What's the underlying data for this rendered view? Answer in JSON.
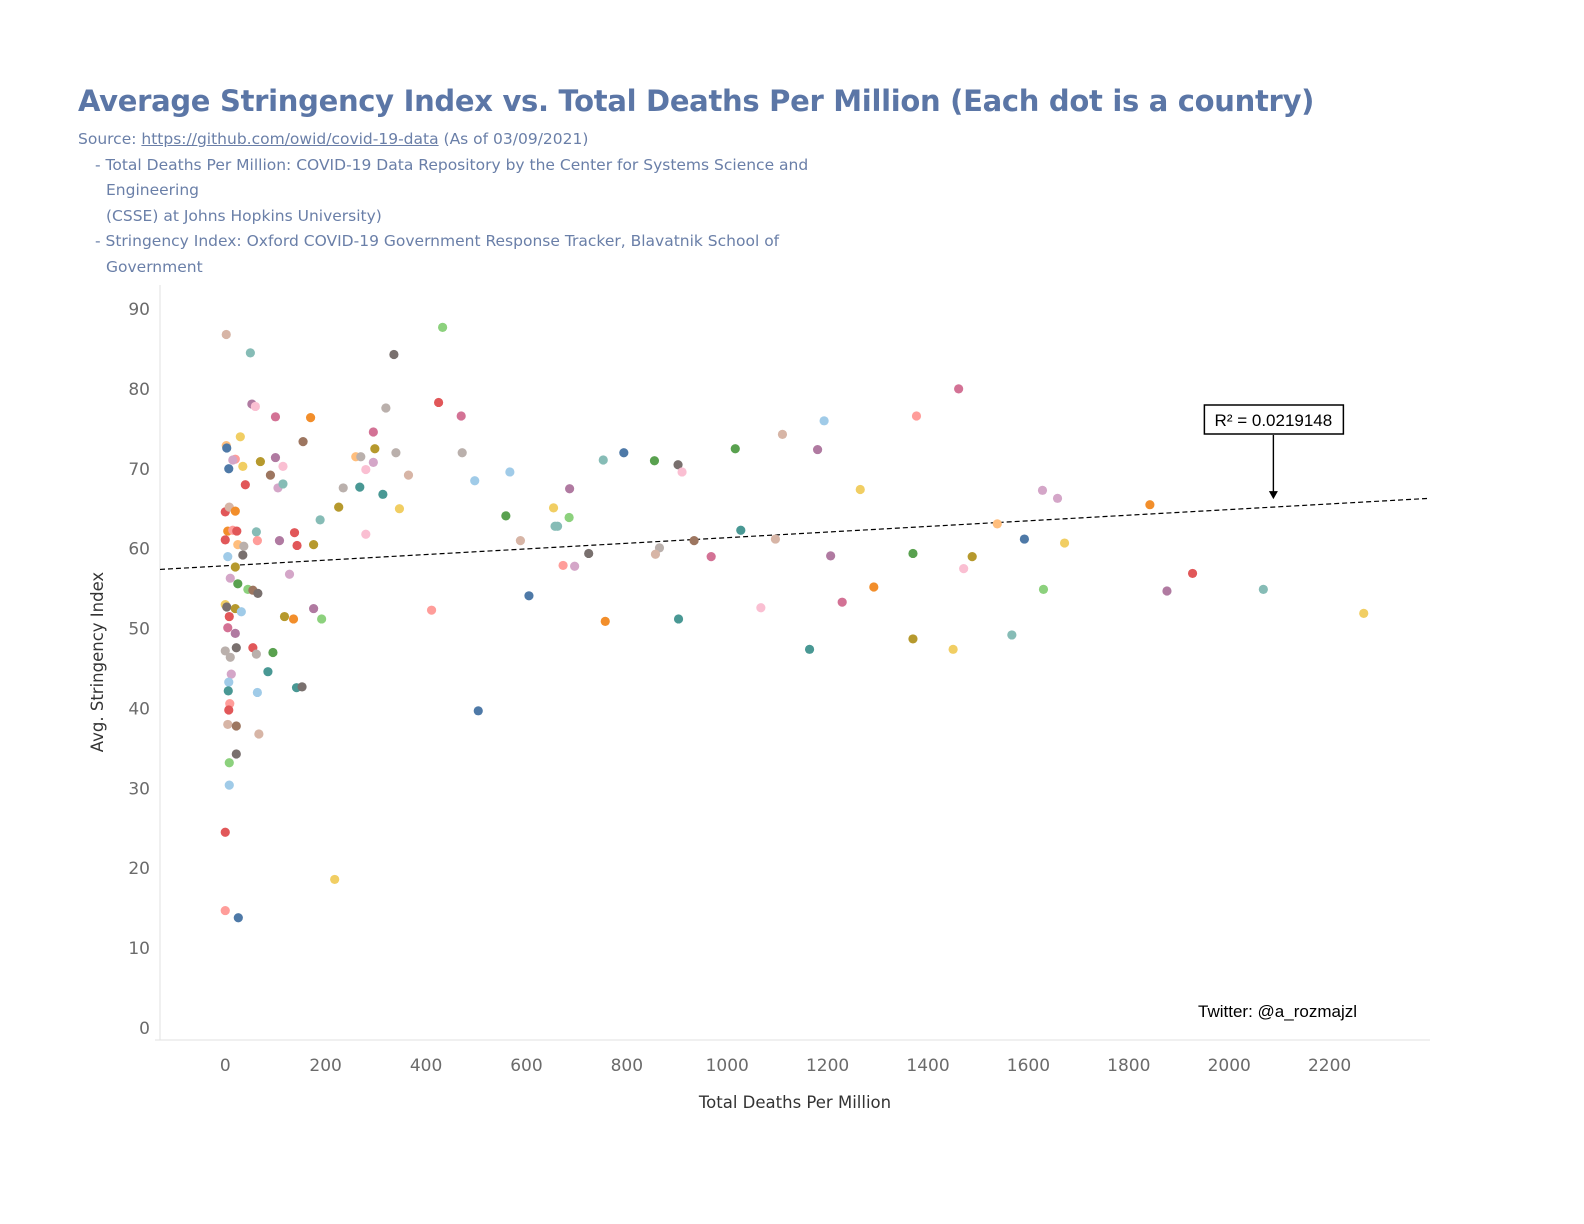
{
  "header": {
    "title": "Average Stringency Index vs. Total Deaths Per Million (Each dot is a country)",
    "source_prefix": "Source: ",
    "source_link": "https://github.com/owid/covid-19-data",
    "source_suffix": " (As of 03/09/2021)",
    "note_line1": "- Total Deaths Per Million: COVID-19 Data Repository by the Center for Systems Science and",
    "note_line2": "Engineering",
    "note_line3": "(CSSE) at Johns Hopkins University)",
    "note_line4": "- Stringency Index: Oxford COVID-19 Government Response Tracker, Blavatnik School of",
    "note_line5": "Government"
  },
  "chart_data": {
    "type": "scatter",
    "xlabel": "Total Deaths Per Million",
    "ylabel": "Avg. Stringency Index",
    "xlim": [
      -130,
      2400
    ],
    "ylim": [
      -1.5,
      93
    ],
    "xticks": [
      0,
      200,
      400,
      600,
      800,
      1000,
      1200,
      1400,
      1600,
      1800,
      2000,
      2200
    ],
    "yticks": [
      0,
      10,
      20,
      30,
      40,
      50,
      60,
      70,
      80,
      90
    ],
    "trend_line": {
      "x": [
        -130,
        2400
      ],
      "y": [
        57.4,
        66.3
      ],
      "style": "dashed"
    },
    "r_squared_label": "R² = 0.0219148",
    "r_squared_arrow_x": 2088,
    "attribution": "Twitter: @a_rozmajzl",
    "palette": [
      "#4e79a7",
      "#a0cbe8",
      "#f28e2b",
      "#ffbe7d",
      "#59a14f",
      "#8cd17d",
      "#b6992d",
      "#f1ce63",
      "#499894",
      "#86bcb6",
      "#e15759",
      "#ff9d9a",
      "#79706e",
      "#bab0ac",
      "#d37295",
      "#fabfd2",
      "#b07aa1",
      "#d4a6c8",
      "#9d7660",
      "#d7b5a6"
    ],
    "points": [
      {
        "x": 2,
        "y": 86.8,
        "color": "#d7b5a6"
      },
      {
        "x": 50,
        "y": 84.5,
        "color": "#86bcb6"
      },
      {
        "x": 433,
        "y": 87.7,
        "color": "#8cd17d"
      },
      {
        "x": 336,
        "y": 84.3,
        "color": "#79706e"
      },
      {
        "x": 53,
        "y": 78.1,
        "color": "#b07aa1"
      },
      {
        "x": 60,
        "y": 77.8,
        "color": "#fabfd2"
      },
      {
        "x": 100,
        "y": 76.5,
        "color": "#d37295"
      },
      {
        "x": 170,
        "y": 76.4,
        "color": "#f28e2b"
      },
      {
        "x": 320,
        "y": 77.6,
        "color": "#bab0ac"
      },
      {
        "x": 425,
        "y": 78.3,
        "color": "#e15759"
      },
      {
        "x": 470,
        "y": 76.6,
        "color": "#d37295"
      },
      {
        "x": 1193,
        "y": 76.0,
        "color": "#a0cbe8"
      },
      {
        "x": 1377,
        "y": 76.6,
        "color": "#ff9d9a"
      },
      {
        "x": 1461,
        "y": 80.0,
        "color": "#d37295"
      },
      {
        "x": 2,
        "y": 72.9,
        "color": "#ffbe7d"
      },
      {
        "x": 3,
        "y": 72.6,
        "color": "#4e79a7"
      },
      {
        "x": 30,
        "y": 74.0,
        "color": "#f1ce63"
      },
      {
        "x": 20,
        "y": 71.2,
        "color": "#ff9d9a"
      },
      {
        "x": 15,
        "y": 71.1,
        "color": "#d4a6c8"
      },
      {
        "x": 7,
        "y": 70.0,
        "color": "#4e79a7"
      },
      {
        "x": 35,
        "y": 70.3,
        "color": "#f1ce63"
      },
      {
        "x": 70,
        "y": 70.9,
        "color": "#b6992d"
      },
      {
        "x": 100,
        "y": 71.4,
        "color": "#b07aa1"
      },
      {
        "x": 115,
        "y": 70.3,
        "color": "#fabfd2"
      },
      {
        "x": 155,
        "y": 73.4,
        "color": "#9d7660"
      },
      {
        "x": 90,
        "y": 69.2,
        "color": "#9d7660"
      },
      {
        "x": 40,
        "y": 68.0,
        "color": "#e15759"
      },
      {
        "x": 105,
        "y": 67.6,
        "color": "#d4a6c8"
      },
      {
        "x": 115,
        "y": 68.1,
        "color": "#86bcb6"
      },
      {
        "x": 260,
        "y": 71.5,
        "color": "#ffbe7d"
      },
      {
        "x": 270,
        "y": 71.5,
        "color": "#bab0ac"
      },
      {
        "x": 295,
        "y": 74.6,
        "color": "#d37295"
      },
      {
        "x": 298,
        "y": 72.5,
        "color": "#b6992d"
      },
      {
        "x": 295,
        "y": 70.8,
        "color": "#d4a6c8"
      },
      {
        "x": 280,
        "y": 69.9,
        "color": "#fabfd2"
      },
      {
        "x": 340,
        "y": 72.0,
        "color": "#bab0ac"
      },
      {
        "x": 365,
        "y": 69.2,
        "color": "#d7b5a6"
      },
      {
        "x": 235,
        "y": 67.6,
        "color": "#bab0ac"
      },
      {
        "x": 268,
        "y": 67.7,
        "color": "#499894"
      },
      {
        "x": 314,
        "y": 66.8,
        "color": "#499894"
      },
      {
        "x": 472,
        "y": 72.0,
        "color": "#bab0ac"
      },
      {
        "x": 497,
        "y": 68.5,
        "color": "#a0cbe8"
      },
      {
        "x": 567,
        "y": 69.6,
        "color": "#a0cbe8"
      },
      {
        "x": 686,
        "y": 67.5,
        "color": "#b07aa1"
      },
      {
        "x": 753,
        "y": 71.1,
        "color": "#86bcb6"
      },
      {
        "x": 794,
        "y": 72.0,
        "color": "#4e79a7"
      },
      {
        "x": 855,
        "y": 71.0,
        "color": "#59a14f"
      },
      {
        "x": 902,
        "y": 70.5,
        "color": "#79706e"
      },
      {
        "x": 910,
        "y": 69.6,
        "color": "#fabfd2"
      },
      {
        "x": 1016,
        "y": 72.5,
        "color": "#59a14f"
      },
      {
        "x": 1110,
        "y": 74.3,
        "color": "#d7b5a6"
      },
      {
        "x": 1180,
        "y": 72.4,
        "color": "#b07aa1"
      },
      {
        "x": 1265,
        "y": 67.4,
        "color": "#f1ce63"
      },
      {
        "x": 1628,
        "y": 67.3,
        "color": "#d4a6c8"
      },
      {
        "x": 1658,
        "y": 66.3,
        "color": "#d4a6c8"
      },
      {
        "x": 1842,
        "y": 65.5,
        "color": "#f28e2b"
      },
      {
        "x": 1538,
        "y": 63.1,
        "color": "#ffbe7d"
      },
      {
        "x": 1592,
        "y": 61.2,
        "color": "#4e79a7"
      },
      {
        "x": 1672,
        "y": 60.7,
        "color": "#f1ce63"
      },
      {
        "x": 0,
        "y": 64.6,
        "color": "#e15759"
      },
      {
        "x": 8,
        "y": 65.2,
        "color": "#d7b5a6"
      },
      {
        "x": 20,
        "y": 64.7,
        "color": "#f28e2b"
      },
      {
        "x": 5,
        "y": 62.2,
        "color": "#f28e2b"
      },
      {
        "x": 15,
        "y": 62.3,
        "color": "#ff9d9a"
      },
      {
        "x": 23,
        "y": 62.2,
        "color": "#e15759"
      },
      {
        "x": 0,
        "y": 61.1,
        "color": "#e15759"
      },
      {
        "x": 25,
        "y": 60.5,
        "color": "#ffbe7d"
      },
      {
        "x": 37,
        "y": 60.3,
        "color": "#bab0ac"
      },
      {
        "x": 62,
        "y": 62.1,
        "color": "#86bcb6"
      },
      {
        "x": 64,
        "y": 61.0,
        "color": "#ff9d9a"
      },
      {
        "x": 108,
        "y": 61.0,
        "color": "#b07aa1"
      },
      {
        "x": 138,
        "y": 62.0,
        "color": "#e15759"
      },
      {
        "x": 143,
        "y": 60.4,
        "color": "#e15759"
      },
      {
        "x": 176,
        "y": 60.5,
        "color": "#b6992d"
      },
      {
        "x": 189,
        "y": 63.6,
        "color": "#86bcb6"
      },
      {
        "x": 226,
        "y": 65.2,
        "color": "#b6992d"
      },
      {
        "x": 280,
        "y": 61.8,
        "color": "#fabfd2"
      },
      {
        "x": 347,
        "y": 65.0,
        "color": "#f1ce63"
      },
      {
        "x": 559,
        "y": 64.1,
        "color": "#59a14f"
      },
      {
        "x": 654,
        "y": 65.1,
        "color": "#f1ce63"
      },
      {
        "x": 685,
        "y": 63.9,
        "color": "#8cd17d"
      },
      {
        "x": 657,
        "y": 62.8,
        "color": "#86bcb6"
      },
      {
        "x": 662,
        "y": 62.8,
        "color": "#86bcb6"
      },
      {
        "x": 588,
        "y": 61.0,
        "color": "#d7b5a6"
      },
      {
        "x": 1027,
        "y": 62.3,
        "color": "#499894"
      },
      {
        "x": 1096,
        "y": 61.2,
        "color": "#d7b5a6"
      },
      {
        "x": 934,
        "y": 61.0,
        "color": "#9d7660"
      },
      {
        "x": 865,
        "y": 60.1,
        "color": "#bab0ac"
      },
      {
        "x": 857,
        "y": 59.3,
        "color": "#d7b5a6"
      },
      {
        "x": 724,
        "y": 59.4,
        "color": "#79706e"
      },
      {
        "x": 968,
        "y": 59.0,
        "color": "#d37295"
      },
      {
        "x": 1206,
        "y": 59.1,
        "color": "#b07aa1"
      },
      {
        "x": 1370,
        "y": 59.4,
        "color": "#59a14f"
      },
      {
        "x": 1488,
        "y": 59.0,
        "color": "#b6992d"
      },
      {
        "x": 1471,
        "y": 57.5,
        "color": "#fabfd2"
      },
      {
        "x": 1292,
        "y": 55.2,
        "color": "#f28e2b"
      },
      {
        "x": 1229,
        "y": 53.3,
        "color": "#d37295"
      },
      {
        "x": 1067,
        "y": 52.6,
        "color": "#fabfd2"
      },
      {
        "x": 1630,
        "y": 54.9,
        "color": "#8cd17d"
      },
      {
        "x": 1876,
        "y": 54.7,
        "color": "#b07aa1"
      },
      {
        "x": 1927,
        "y": 56.9,
        "color": "#e15759"
      },
      {
        "x": 2068,
        "y": 54.9,
        "color": "#86bcb6"
      },
      {
        "x": 2268,
        "y": 51.9,
        "color": "#f1ce63"
      },
      {
        "x": 1567,
        "y": 49.2,
        "color": "#86bcb6"
      },
      {
        "x": 1370,
        "y": 48.7,
        "color": "#b6992d"
      },
      {
        "x": 1450,
        "y": 47.4,
        "color": "#f1ce63"
      },
      {
        "x": 1164,
        "y": 47.4,
        "color": "#499894"
      },
      {
        "x": 903,
        "y": 51.2,
        "color": "#499894"
      },
      {
        "x": 757,
        "y": 50.9,
        "color": "#f28e2b"
      },
      {
        "x": 673,
        "y": 57.9,
        "color": "#ff9d9a"
      },
      {
        "x": 696,
        "y": 57.8,
        "color": "#d4a6c8"
      },
      {
        "x": 605,
        "y": 54.1,
        "color": "#4e79a7"
      },
      {
        "x": 411,
        "y": 52.3,
        "color": "#ff9d9a"
      },
      {
        "x": 504,
        "y": 39.7,
        "color": "#4e79a7"
      },
      {
        "x": 35,
        "y": 59.2,
        "color": "#79706e"
      },
      {
        "x": 5,
        "y": 59.0,
        "color": "#a0cbe8"
      },
      {
        "x": 20,
        "y": 57.7,
        "color": "#b6992d"
      },
      {
        "x": 10,
        "y": 56.3,
        "color": "#d4a6c8"
      },
      {
        "x": 25,
        "y": 55.6,
        "color": "#59a14f"
      },
      {
        "x": 45,
        "y": 54.9,
        "color": "#8cd17d"
      },
      {
        "x": 55,
        "y": 54.8,
        "color": "#9d7660"
      },
      {
        "x": 65,
        "y": 54.4,
        "color": "#79706e"
      },
      {
        "x": 128,
        "y": 56.8,
        "color": "#d4a6c8"
      },
      {
        "x": 0,
        "y": 53.0,
        "color": "#f1ce63"
      },
      {
        "x": 3,
        "y": 52.7,
        "color": "#79706e"
      },
      {
        "x": 20,
        "y": 52.5,
        "color": "#b6992d"
      },
      {
        "x": 32,
        "y": 52.1,
        "color": "#a0cbe8"
      },
      {
        "x": 8,
        "y": 51.5,
        "color": "#e15759"
      },
      {
        "x": 118,
        "y": 51.5,
        "color": "#b6992d"
      },
      {
        "x": 136,
        "y": 51.2,
        "color": "#f28e2b"
      },
      {
        "x": 176,
        "y": 52.5,
        "color": "#b07aa1"
      },
      {
        "x": 192,
        "y": 51.2,
        "color": "#8cd17d"
      },
      {
        "x": 5,
        "y": 50.1,
        "color": "#d37295"
      },
      {
        "x": 20,
        "y": 49.4,
        "color": "#b07aa1"
      },
      {
        "x": 0,
        "y": 47.2,
        "color": "#bab0ac"
      },
      {
        "x": 10,
        "y": 46.4,
        "color": "#bab0ac"
      },
      {
        "x": 22,
        "y": 47.6,
        "color": "#79706e"
      },
      {
        "x": 55,
        "y": 47.6,
        "color": "#e15759"
      },
      {
        "x": 62,
        "y": 46.8,
        "color": "#bab0ac"
      },
      {
        "x": 95,
        "y": 47.0,
        "color": "#59a14f"
      },
      {
        "x": 12,
        "y": 44.3,
        "color": "#d4a6c8"
      },
      {
        "x": 85,
        "y": 44.6,
        "color": "#499894"
      },
      {
        "x": 7,
        "y": 43.3,
        "color": "#a0cbe8"
      },
      {
        "x": 6,
        "y": 42.2,
        "color": "#499894"
      },
      {
        "x": 142,
        "y": 42.6,
        "color": "#499894"
      },
      {
        "x": 153,
        "y": 42.7,
        "color": "#79706e"
      },
      {
        "x": 64,
        "y": 42.0,
        "color": "#a0cbe8"
      },
      {
        "x": 9,
        "y": 40.6,
        "color": "#ff9d9a"
      },
      {
        "x": 7,
        "y": 39.8,
        "color": "#e15759"
      },
      {
        "x": 5,
        "y": 38.0,
        "color": "#d7b5a6"
      },
      {
        "x": 22,
        "y": 37.8,
        "color": "#9d7660"
      },
      {
        "x": 67,
        "y": 36.8,
        "color": "#d7b5a6"
      },
      {
        "x": 22,
        "y": 34.3,
        "color": "#79706e"
      },
      {
        "x": 8,
        "y": 33.2,
        "color": "#8cd17d"
      },
      {
        "x": 8,
        "y": 30.4,
        "color": "#a0cbe8"
      },
      {
        "x": 0,
        "y": 24.5,
        "color": "#e15759"
      },
      {
        "x": 218,
        "y": 18.6,
        "color": "#f1ce63"
      },
      {
        "x": 0,
        "y": 14.7,
        "color": "#ff9d9a"
      },
      {
        "x": 26,
        "y": 13.8,
        "color": "#4e79a7"
      }
    ]
  }
}
